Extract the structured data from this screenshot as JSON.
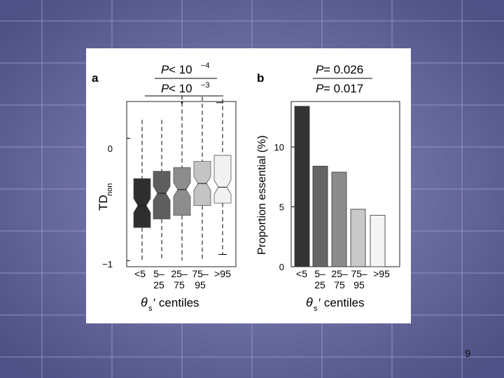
{
  "slide": {
    "page_number": "9"
  },
  "chart_data": [
    {
      "panel_label": "a",
      "type": "boxplot",
      "ylabel": "TD",
      "ylabel_sub": "non",
      "xlabel_symbol": "θ",
      "xlabel_sub": "s",
      "xlabel_rest": "′ centiles",
      "yticks": [
        {
          "value": 0,
          "label": "0"
        },
        {
          "value": -1,
          "label": "−1"
        }
      ],
      "ylim": [
        -1.05,
        0.3
      ],
      "categories": [
        {
          "line1": "<5",
          "line2": ""
        },
        {
          "line1": "5–",
          "line2": "25"
        },
        {
          "line1": "25–",
          "line2": "75"
        },
        {
          "line1": "75–",
          "line2": "95"
        },
        {
          "line1": ">95",
          "line2": ""
        }
      ],
      "boxes": [
        {
          "q1": -0.73,
          "median": -0.55,
          "q3": -0.33,
          "whisker_low": -1.0,
          "whisker_high": 0.15,
          "color": "#2e2e2e"
        },
        {
          "q1": -0.66,
          "median": -0.45,
          "q3": -0.27,
          "whisker_low": -1.0,
          "whisker_high": 0.15,
          "color": "#5e5e5e"
        },
        {
          "q1": -0.63,
          "median": -0.42,
          "q3": -0.24,
          "whisker_low": -1.0,
          "whisker_high": 0.35,
          "color": "#8d8d8d"
        },
        {
          "q1": -0.55,
          "median": -0.37,
          "q3": -0.19,
          "whisker_low": -1.0,
          "whisker_high": 0.34,
          "color": "#c4c4c4"
        },
        {
          "q1": -0.53,
          "median": -0.4,
          "q3": -0.14,
          "whisker_low": -0.95,
          "whisker_high": 0.32,
          "color": "#f1f1f1"
        }
      ],
      "outliers": [
        {
          "category_index": 2,
          "value": 0.29
        }
      ],
      "significance": [
        {
          "prefix": "P",
          "op": " < 10",
          "exp": "−4"
        },
        {
          "prefix": "P",
          "op": " < 10",
          "exp": "−3"
        }
      ]
    },
    {
      "panel_label": "b",
      "type": "bar",
      "ylabel": "Proportion essential (%)",
      "xlabel_symbol": "θ",
      "xlabel_sub": "s",
      "xlabel_rest": "′ centiles",
      "categories": [
        {
          "line1": "<5",
          "line2": ""
        },
        {
          "line1": "5–",
          "line2": "25"
        },
        {
          "line1": "25–",
          "line2": "75"
        },
        {
          "line1": "75–",
          "line2": "95"
        },
        {
          "line1": ">95",
          "line2": ""
        }
      ],
      "values": [
        13.4,
        8.4,
        7.9,
        4.8,
        4.3
      ],
      "colors": [
        "#333333",
        "#666666",
        "#8c8c8c",
        "#c8c8c8",
        "#f4f4f4"
      ],
      "yticks": [
        {
          "value": 0,
          "label": "0"
        },
        {
          "value": 5,
          "label": "5"
        },
        {
          "value": 10,
          "label": "10"
        }
      ],
      "ylim": [
        0,
        13.8
      ],
      "significance": [
        {
          "prefix": "P",
          "op": " = 0.026"
        },
        {
          "prefix": "P",
          "op": " = 0.017"
        }
      ]
    }
  ]
}
